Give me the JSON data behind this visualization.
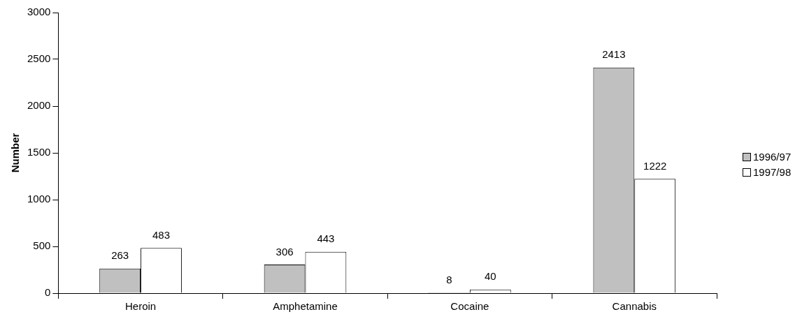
{
  "chart_data": {
    "type": "bar",
    "ylabel": "Number",
    "categories": [
      "Heroin",
      "Amphetamine",
      "Cocaine",
      "Cannabis"
    ],
    "series": [
      {
        "name": "1996/97",
        "color": "#c0c0c0",
        "values": [
          263,
          306,
          8,
          2413
        ]
      },
      {
        "name": "1997/98",
        "color": "#ffffff",
        "values": [
          483,
          443,
          40,
          1222
        ]
      }
    ],
    "ylim": [
      0,
      3000
    ],
    "yticks": [
      0,
      500,
      1000,
      1500,
      2000,
      2500,
      3000
    ],
    "grid": false,
    "legend": "right",
    "data_labels": true
  }
}
